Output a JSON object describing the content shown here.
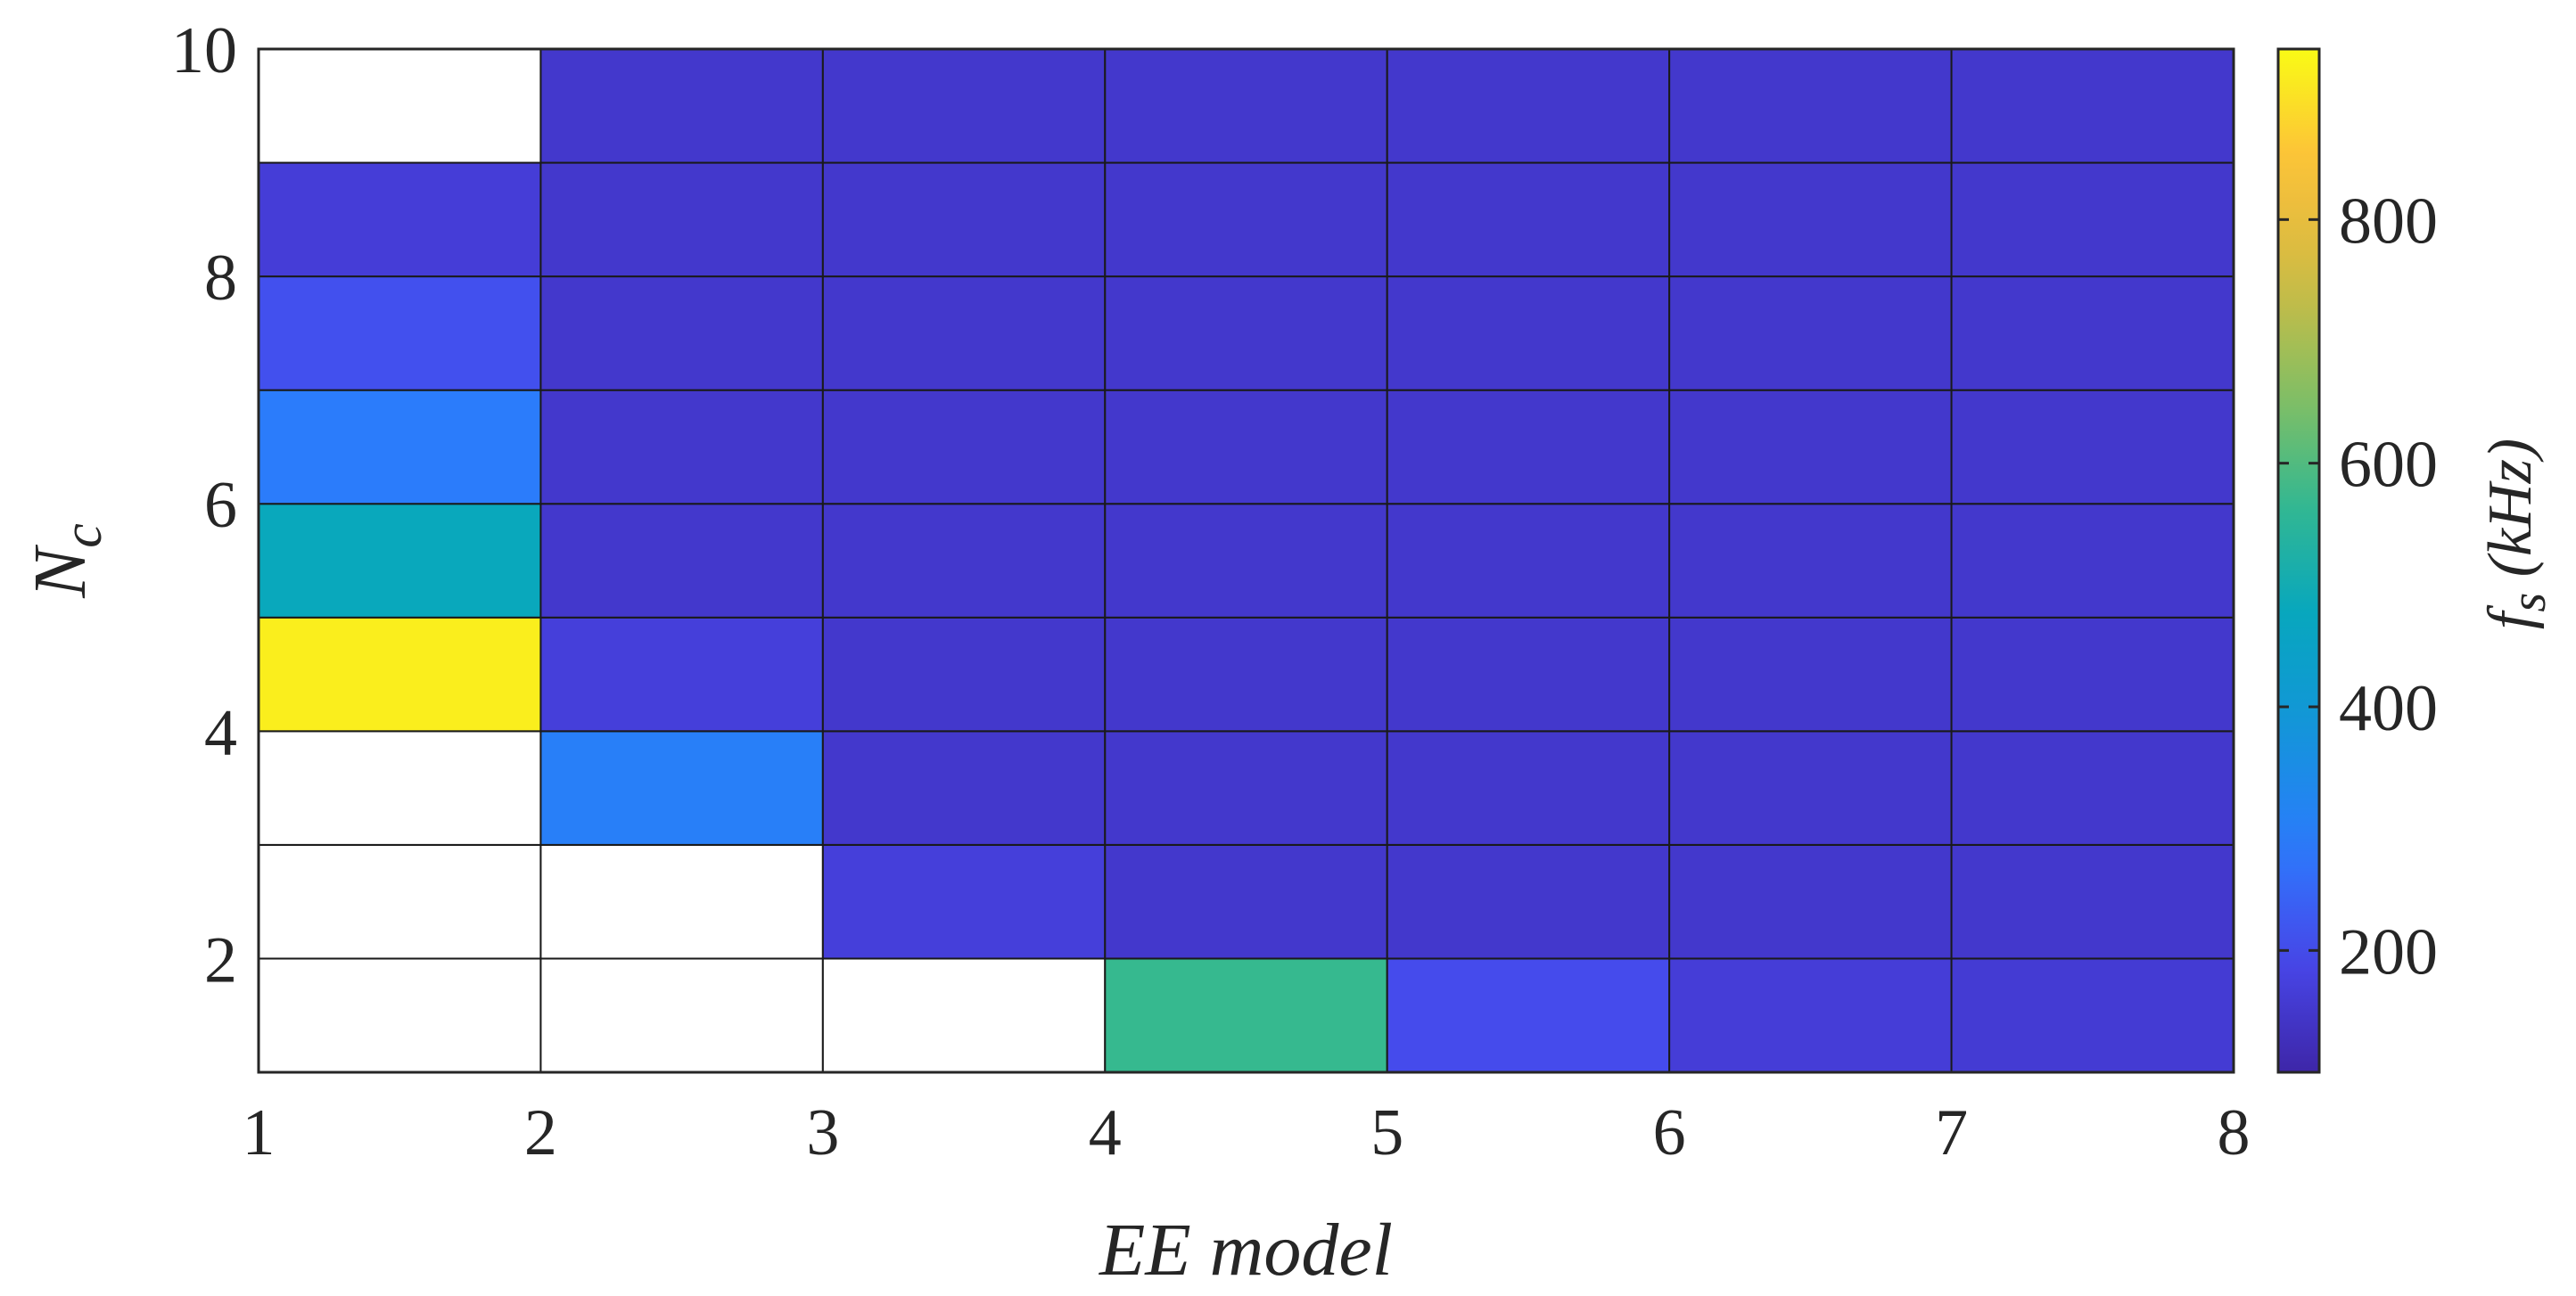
{
  "chart_data": {
    "type": "heatmap",
    "title": "",
    "xlabel": "EE model",
    "ylabel": {
      "main": "N",
      "subscript": "c"
    },
    "xlim": [
      1,
      8
    ],
    "ylim": [
      1,
      10
    ],
    "x_ticks": [
      "1",
      "2",
      "3",
      "4",
      "5",
      "6",
      "7",
      "8"
    ],
    "y_ticks": [
      "2",
      "4",
      "6",
      "8",
      "10"
    ],
    "x_edges": [
      1,
      2,
      3,
      4,
      5,
      6,
      7,
      8
    ],
    "y_edges": [
      1,
      2,
      3,
      4,
      5,
      6,
      7,
      8,
      9,
      10
    ],
    "rows_y_start": [
      1,
      2,
      3,
      4,
      5,
      6,
      7,
      8,
      9
    ],
    "cols_x_start": [
      1,
      2,
      3,
      4,
      5,
      6,
      7
    ],
    "values": [
      [
        null,
        null,
        null,
        570,
        200,
        165,
        160
      ],
      [
        null,
        null,
        170,
        150,
        150,
        150,
        150
      ],
      [
        null,
        300,
        150,
        150,
        150,
        150,
        150
      ],
      [
        920,
        170,
        150,
        150,
        150,
        150,
        150
      ],
      [
        480,
        150,
        150,
        150,
        150,
        150,
        150
      ],
      [
        290,
        150,
        150,
        150,
        150,
        150,
        150
      ],
      [
        210,
        150,
        150,
        150,
        150,
        150,
        150
      ],
      [
        165,
        150,
        150,
        150,
        150,
        150,
        150
      ],
      [
        null,
        150,
        150,
        150,
        150,
        150,
        150
      ]
    ],
    "missing_color": "#ffffff",
    "grid": true,
    "colorbar": {
      "label": {
        "main": "f",
        "subscript": "s",
        "unit": " (kHz)"
      },
      "colormap": "parula",
      "range": [
        100,
        940
      ],
      "ticks": [
        "200",
        "400",
        "600",
        "800"
      ]
    }
  }
}
